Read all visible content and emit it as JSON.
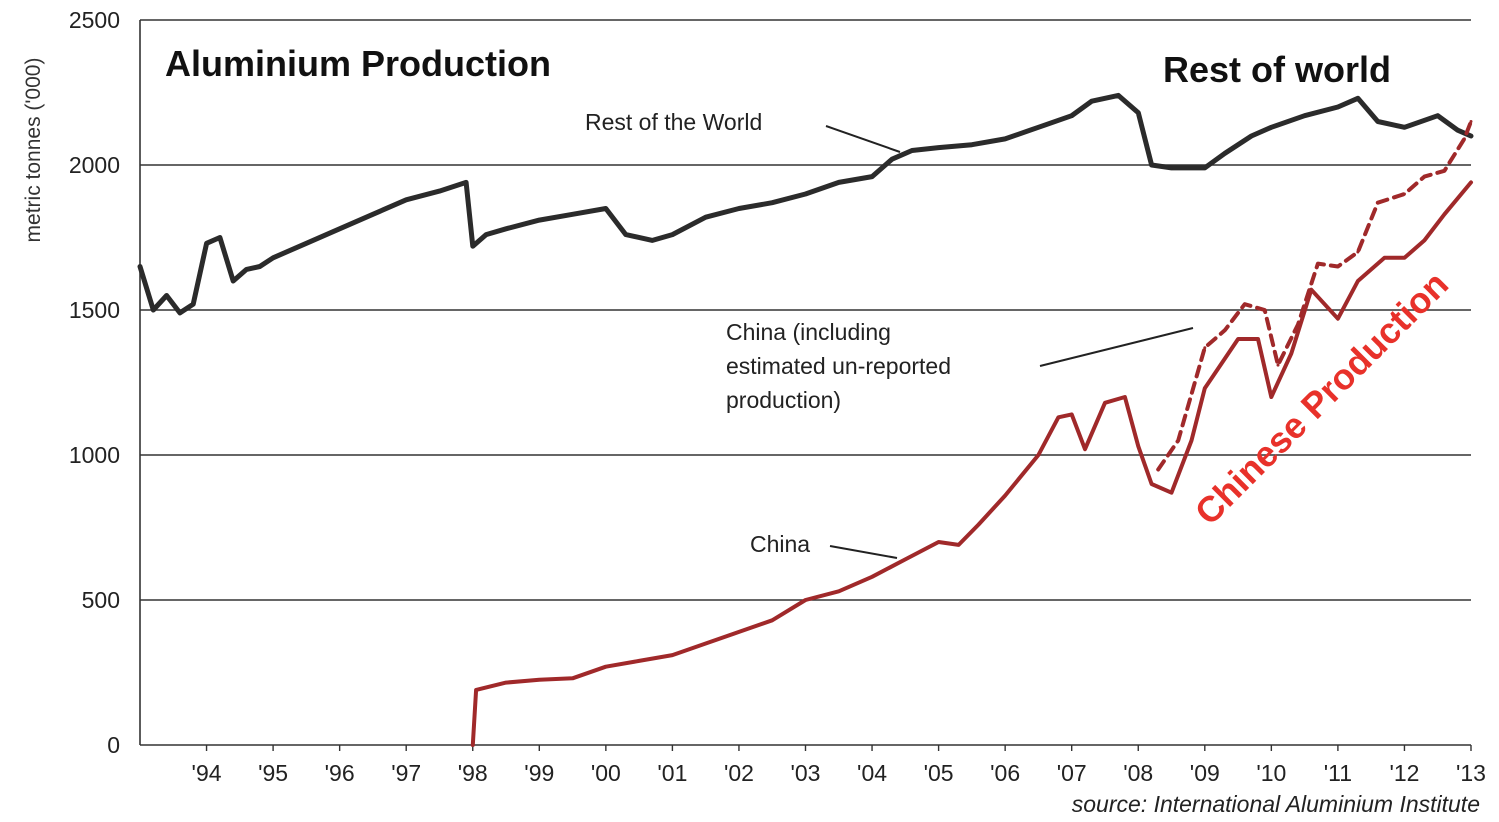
{
  "chart_data": {
    "type": "line",
    "title": "Aluminium Production",
    "ylabel": "metric tonnes ('000)",
    "xlabel": "",
    "ylim": [
      0,
      2500
    ],
    "xlim": [
      1993.0,
      2013.0
    ],
    "yticks": [
      0,
      500,
      1000,
      1500,
      2000,
      2500
    ],
    "xtick_labels": [
      "'94",
      "'95",
      "'96",
      "'97",
      "'98",
      "'99",
      "'00",
      "'01",
      "'02",
      "'03",
      "'04",
      "'05",
      "'06",
      "'07",
      "'08",
      "'09",
      "'10",
      "'11",
      "'12",
      "'13"
    ],
    "xtick_values": [
      1994,
      1995,
      1996,
      1997,
      1998,
      1999,
      2000,
      2001,
      2002,
      2003,
      2004,
      2005,
      2006,
      2007,
      2008,
      2009,
      2010,
      2011,
      2012,
      2013
    ],
    "grid": "horizontal",
    "series": [
      {
        "name": "Rest of the World",
        "color": "#2b2b2b",
        "x": [
          1993.0,
          1993.2,
          1993.4,
          1993.6,
          1993.8,
          1994.0,
          1994.2,
          1994.4,
          1994.6,
          1994.8,
          1995.0,
          1995.5,
          1996.0,
          1996.5,
          1997.0,
          1997.5,
          1997.9,
          1998.0,
          1998.2,
          1998.5,
          1999.0,
          1999.5,
          2000.0,
          2000.3,
          2000.7,
          2001.0,
          2001.5,
          2002.0,
          2002.5,
          2003.0,
          2003.5,
          2004.0,
          2004.3,
          2004.6,
          2005.0,
          2005.5,
          2006.0,
          2006.5,
          2007.0,
          2007.3,
          2007.7,
          2008.0,
          2008.2,
          2008.5,
          2009.0,
          2009.3,
          2009.7,
          2010.0,
          2010.5,
          2011.0,
          2011.3,
          2011.6,
          2012.0,
          2012.5,
          2012.8,
          2013.0
        ],
        "values": [
          1650,
          1500,
          1550,
          1490,
          1520,
          1730,
          1750,
          1600,
          1640,
          1650,
          1680,
          1730,
          1780,
          1830,
          1880,
          1910,
          1940,
          1720,
          1760,
          1780,
          1810,
          1830,
          1850,
          1760,
          1740,
          1760,
          1820,
          1850,
          1870,
          1900,
          1940,
          1960,
          2020,
          2050,
          2060,
          2070,
          2090,
          2130,
          2170,
          2220,
          2240,
          2180,
          2000,
          1990,
          1990,
          2040,
          2100,
          2130,
          2170,
          2200,
          2230,
          2150,
          2130,
          2170,
          2120,
          2100
        ]
      },
      {
        "name": "China (including estimated un-reported production)",
        "color": "#a0292a",
        "dashed": true,
        "x": [
          2008.3,
          2008.6,
          2009.0,
          2009.3,
          2009.6,
          2009.9,
          2010.1,
          2010.4,
          2010.7,
          2011.0,
          2011.3,
          2011.6,
          2012.0,
          2012.3,
          2012.6,
          2012.9,
          2013.0
        ],
        "values": [
          950,
          1050,
          1370,
          1430,
          1520,
          1500,
          1310,
          1450,
          1660,
          1650,
          1700,
          1870,
          1900,
          1960,
          1980,
          2090,
          2150
        ]
      },
      {
        "name": "China",
        "color": "#a0292a",
        "x": [
          1998.0,
          1998.05,
          1998.5,
          1999.0,
          1999.5,
          2000.0,
          2000.5,
          2001.0,
          2001.5,
          2002.0,
          2002.5,
          2003.0,
          2003.5,
          2004.0,
          2004.5,
          2005.0,
          2005.3,
          2005.6,
          2006.0,
          2006.5,
          2006.8,
          2007.0,
          2007.2,
          2007.5,
          2007.8,
          2008.0,
          2008.2,
          2008.5,
          2008.8,
          2009.0,
          2009.5,
          2009.8,
          2010.0,
          2010.3,
          2010.6,
          2011.0,
          2011.3,
          2011.7,
          2012.0,
          2012.3,
          2012.6,
          2013.0
        ],
        "values": [
          0,
          190,
          215,
          225,
          230,
          270,
          290,
          310,
          350,
          390,
          430,
          500,
          530,
          580,
          640,
          700,
          690,
          760,
          860,
          1000,
          1130,
          1140,
          1020,
          1180,
          1200,
          1030,
          900,
          870,
          1050,
          1230,
          1400,
          1400,
          1200,
          1350,
          1570,
          1470,
          1600,
          1680,
          1680,
          1740,
          1830,
          1940
        ]
      }
    ],
    "annotations": [
      "Rest of the World",
      "China (including",
      "estimated un-reported",
      "production)",
      "China"
    ],
    "overlay_labels": {
      "rest_of_world": "Rest of world",
      "chinese_production": "Chinese Production"
    },
    "source": "source: International Aluminium Institute"
  }
}
